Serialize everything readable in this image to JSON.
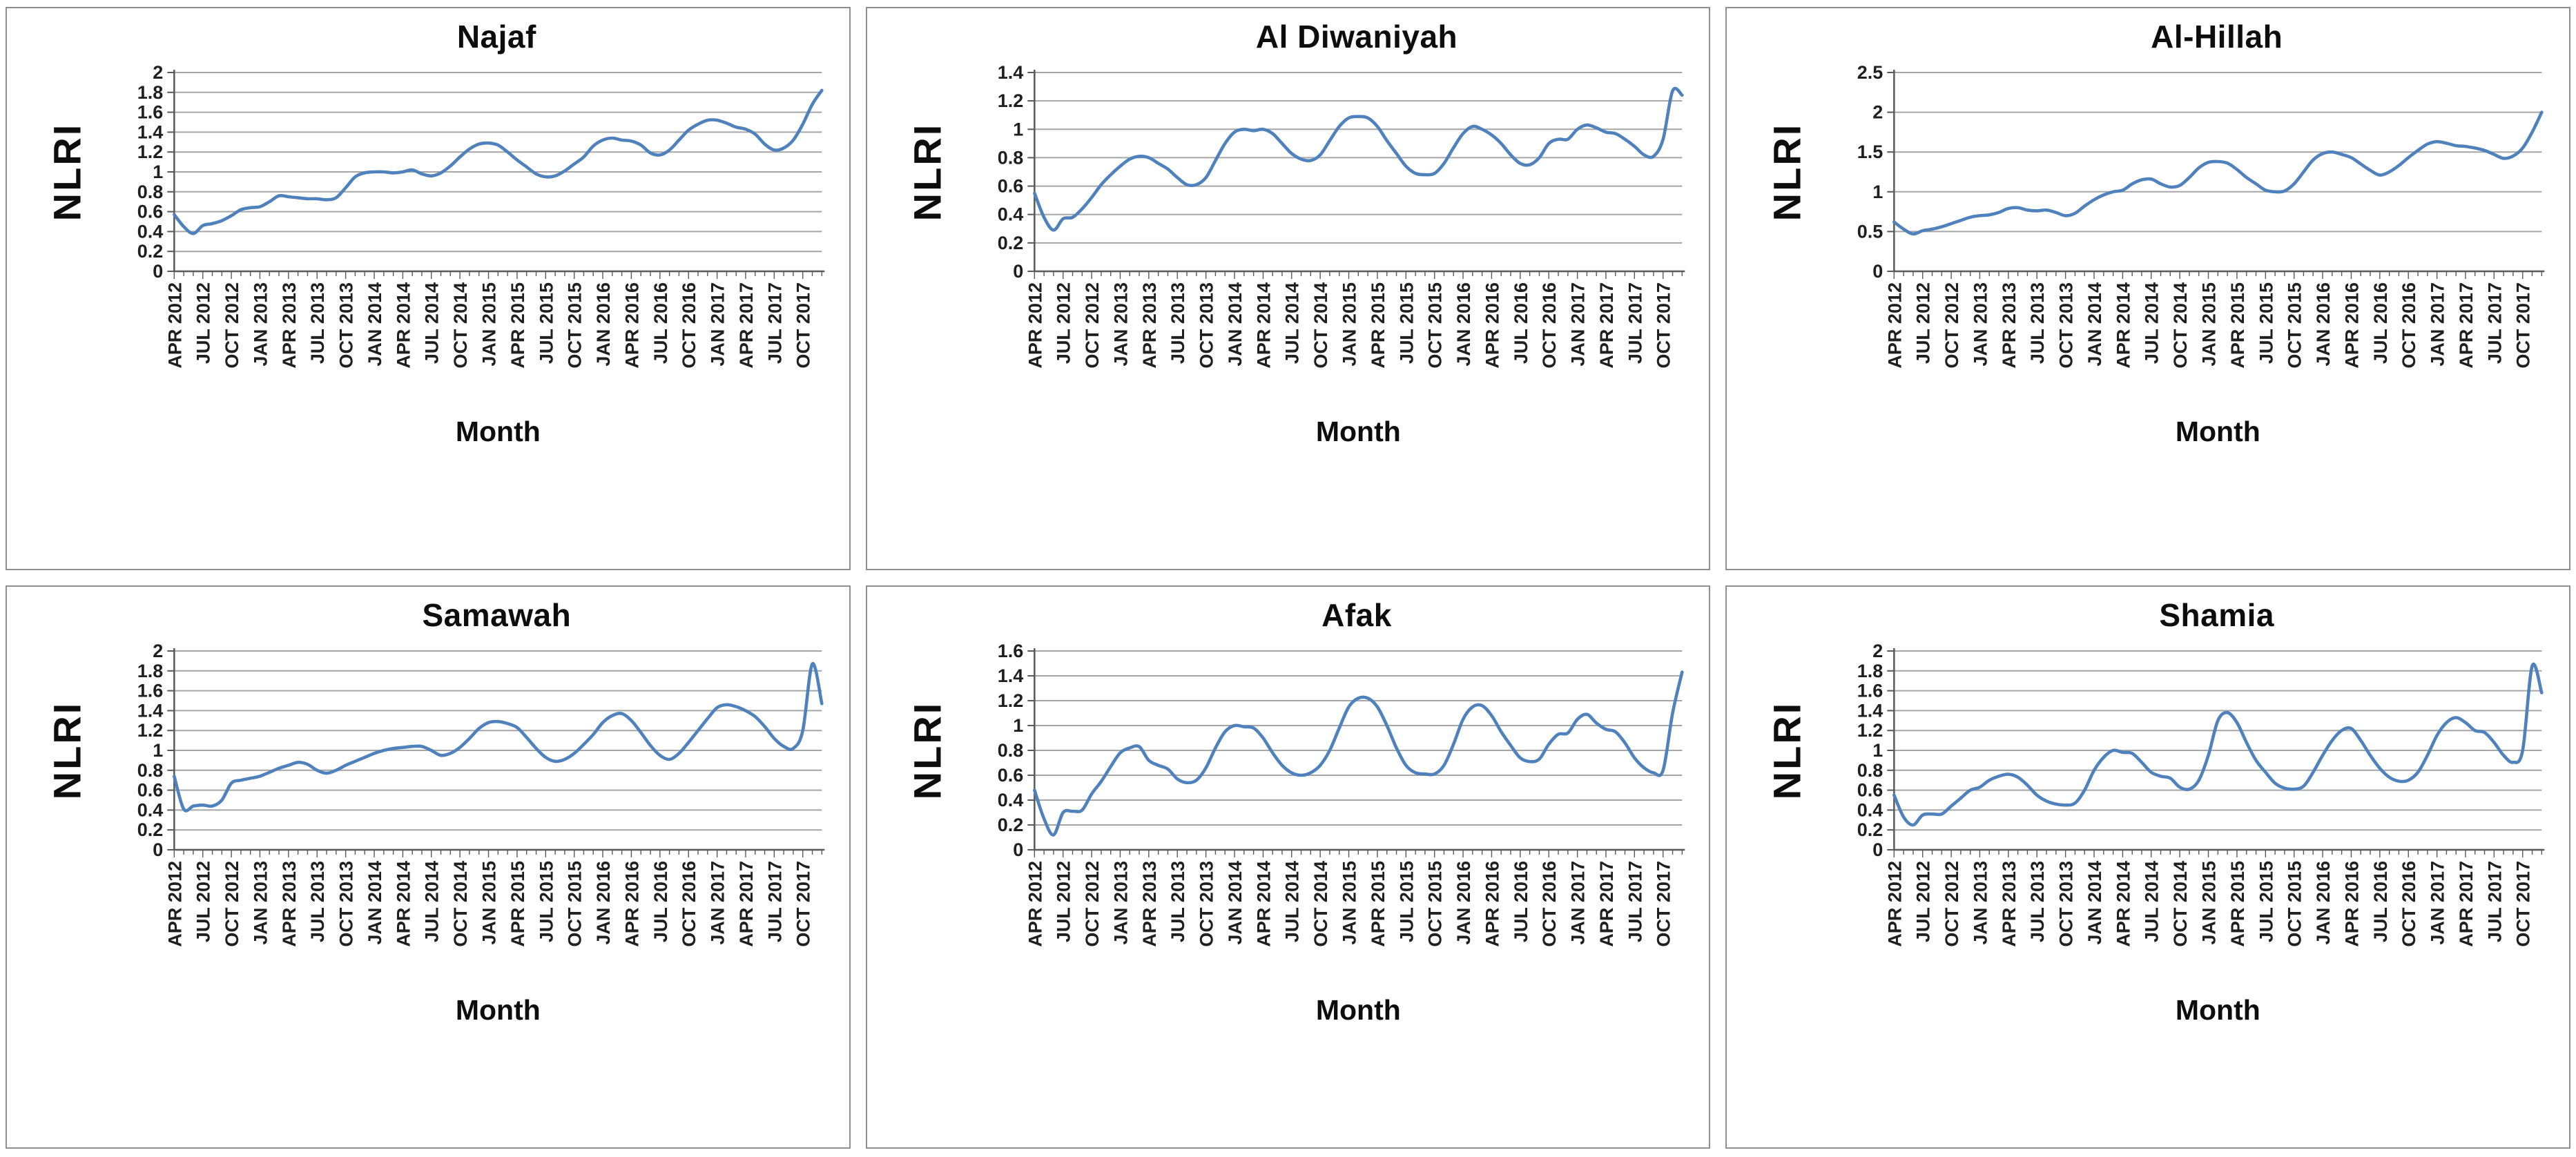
{
  "style": {
    "line_color": "#4f81bd",
    "gridline_color": "#a6a6a6",
    "axis_color": "#595959",
    "tick_text_color": "#1f1f1f",
    "title_text_color": "#0d0d0d",
    "panel_border_color": "#8f8f8f",
    "background": "#ffffff"
  },
  "chart_data": [
    {
      "id": "najaf",
      "type": "line",
      "title": "Najaf",
      "xlabel": "Month",
      "ylabel": "NLRI",
      "x_start": "APR 2012",
      "x_end": "DEC 2017",
      "x_interval": "monthly",
      "ylim": [
        0,
        2
      ],
      "ytick_step": 0.2,
      "grid": true,
      "legend": "none",
      "ytick_labels": [
        "2",
        "1.8",
        "1.6",
        "1.4",
        "1.2",
        "1",
        "0.8",
        "0.6",
        "0.4",
        "0.2",
        "0"
      ],
      "x_tick_labels": [
        "APR 2012",
        "JUL 2012",
        "OCT 2012",
        "JAN 2013",
        "APR 2013",
        "JUL 2013",
        "OCT 2013",
        "JAN 2014",
        "APR 2014",
        "JUL 2014",
        "OCT 2014",
        "JAN 2015",
        "APR 2015",
        "JUL 2015",
        "OCT 2015",
        "JAN 2016",
        "APR 2016",
        "JUL 2016",
        "OCT 2016",
        "JAN 2017",
        "APR 2017",
        "JUL 2017",
        "OCT 2017"
      ],
      "values": [
        0.57,
        0.45,
        0.38,
        0.46,
        0.48,
        0.51,
        0.56,
        0.62,
        0.64,
        0.65,
        0.7,
        0.76,
        0.75,
        0.74,
        0.73,
        0.73,
        0.72,
        0.74,
        0.84,
        0.95,
        0.99,
        1.0,
        1.0,
        0.99,
        1.0,
        1.02,
        0.98,
        0.96,
        0.99,
        1.06,
        1.15,
        1.23,
        1.28,
        1.29,
        1.27,
        1.2,
        1.12,
        1.05,
        0.98,
        0.95,
        0.96,
        1.01,
        1.08,
        1.15,
        1.26,
        1.32,
        1.34,
        1.32,
        1.31,
        1.27,
        1.19,
        1.17,
        1.22,
        1.32,
        1.42,
        1.48,
        1.52,
        1.52,
        1.49,
        1.45,
        1.43,
        1.38,
        1.28,
        1.22,
        1.24,
        1.32,
        1.48,
        1.68,
        1.82
      ]
    },
    {
      "id": "al-diwaniyah",
      "type": "line",
      "title": "Al Diwaniyah",
      "xlabel": "Month",
      "ylabel": "NLRI",
      "x_start": "APR 2012",
      "x_end": "DEC 2017",
      "x_interval": "monthly",
      "ylim": [
        0,
        1.4
      ],
      "ytick_step": 0.2,
      "grid": true,
      "legend": "none",
      "ytick_labels": [
        "1.4",
        "1.2",
        "1",
        "0.8",
        "0.6",
        "0.4",
        "0.2",
        "0"
      ],
      "x_tick_labels": [
        "APR 2012",
        "JUL 2012",
        "OCT 2012",
        "JAN 2013",
        "APR 2013",
        "JUL 2013",
        "OCT 2013",
        "JAN 2014",
        "APR 2014",
        "JUL 2014",
        "OCT 2014",
        "JAN 2015",
        "APR 2015",
        "JUL 2015",
        "OCT 2015",
        "JAN 2016",
        "APR 2016",
        "JUL 2016",
        "OCT 2016",
        "JAN 2017",
        "APR 2017",
        "JUL 2017",
        "OCT 2017"
      ],
      "values": [
        0.55,
        0.38,
        0.29,
        0.37,
        0.38,
        0.44,
        0.52,
        0.61,
        0.68,
        0.74,
        0.79,
        0.81,
        0.8,
        0.76,
        0.72,
        0.66,
        0.61,
        0.61,
        0.66,
        0.78,
        0.9,
        0.98,
        1.0,
        0.99,
        1.0,
        0.97,
        0.9,
        0.83,
        0.79,
        0.78,
        0.82,
        0.92,
        1.02,
        1.08,
        1.09,
        1.08,
        1.02,
        0.92,
        0.83,
        0.74,
        0.69,
        0.68,
        0.69,
        0.76,
        0.87,
        0.97,
        1.02,
        1.0,
        0.96,
        0.9,
        0.82,
        0.76,
        0.75,
        0.8,
        0.9,
        0.93,
        0.93,
        1.0,
        1.03,
        1.01,
        0.98,
        0.97,
        0.93,
        0.88,
        0.82,
        0.81,
        0.93,
        1.27,
        1.24
      ]
    },
    {
      "id": "al-hillah",
      "type": "line",
      "title": "Al-Hillah",
      "xlabel": "Month",
      "ylabel": "NLRI",
      "x_start": "APR 2012",
      "x_end": "DEC 2017",
      "x_interval": "monthly",
      "ylim": [
        0,
        2.5
      ],
      "ytick_step": 0.5,
      "grid": true,
      "legend": "none",
      "ytick_labels": [
        "2.5",
        "2",
        "1.5",
        "1",
        "0.5",
        "0"
      ],
      "x_tick_labels": [
        "APR 2012",
        "JUL 2012",
        "OCT 2012",
        "JAN 2013",
        "APR 2013",
        "JUL 2013",
        "OCT 2013",
        "JAN 2014",
        "APR 2014",
        "JUL 2014",
        "OCT 2014",
        "JAN 2015",
        "APR 2015",
        "JUL 2015",
        "OCT 2015",
        "JAN 2016",
        "APR 2016",
        "JUL 2016",
        "OCT 2016",
        "JAN 2017",
        "APR 2017",
        "JUL 2017",
        "OCT 2017"
      ],
      "values": [
        0.62,
        0.53,
        0.47,
        0.51,
        0.53,
        0.56,
        0.6,
        0.64,
        0.68,
        0.7,
        0.71,
        0.74,
        0.79,
        0.8,
        0.77,
        0.76,
        0.77,
        0.74,
        0.7,
        0.73,
        0.82,
        0.9,
        0.96,
        1.0,
        1.02,
        1.1,
        1.15,
        1.16,
        1.1,
        1.06,
        1.08,
        1.18,
        1.3,
        1.37,
        1.38,
        1.36,
        1.28,
        1.18,
        1.1,
        1.02,
        1.0,
        1.01,
        1.1,
        1.25,
        1.4,
        1.48,
        1.5,
        1.47,
        1.43,
        1.35,
        1.27,
        1.21,
        1.25,
        1.33,
        1.43,
        1.52,
        1.6,
        1.63,
        1.61,
        1.58,
        1.57,
        1.55,
        1.52,
        1.47,
        1.42,
        1.45,
        1.55,
        1.75,
        2.0
      ]
    },
    {
      "id": "samawah",
      "type": "line",
      "title": "Samawah",
      "xlabel": "Month",
      "ylabel": "NLRI",
      "x_start": "APR 2012",
      "x_end": "DEC 2017",
      "x_interval": "monthly",
      "ylim": [
        0,
        2
      ],
      "ytick_step": 0.2,
      "grid": true,
      "legend": "none",
      "ytick_labels": [
        "2",
        "1.8",
        "1.6",
        "1.4",
        "1.2",
        "1",
        "0.8",
        "0.6",
        "0.4",
        "0.2",
        "0"
      ],
      "x_tick_labels": [
        "APR 2012",
        "JUL 2012",
        "OCT 2012",
        "JAN 2013",
        "APR 2013",
        "JUL 2013",
        "OCT 2013",
        "JAN 2014",
        "APR 2014",
        "JUL 2014",
        "OCT 2014",
        "JAN 2015",
        "APR 2015",
        "JUL 2015",
        "OCT 2015",
        "JAN 2016",
        "APR 2016",
        "JUL 2016",
        "OCT 2016",
        "JAN 2017",
        "APR 2017",
        "JUL 2017",
        "OCT 2017"
      ],
      "values": [
        0.74,
        0.41,
        0.44,
        0.45,
        0.44,
        0.5,
        0.67,
        0.7,
        0.72,
        0.74,
        0.78,
        0.82,
        0.85,
        0.88,
        0.86,
        0.8,
        0.77,
        0.8,
        0.85,
        0.89,
        0.93,
        0.97,
        1.0,
        1.02,
        1.03,
        1.04,
        1.04,
        1.0,
        0.95,
        0.97,
        1.03,
        1.12,
        1.22,
        1.28,
        1.29,
        1.27,
        1.23,
        1.13,
        1.02,
        0.93,
        0.89,
        0.91,
        0.97,
        1.06,
        1.16,
        1.28,
        1.35,
        1.37,
        1.3,
        1.18,
        1.05,
        0.95,
        0.91,
        0.97,
        1.08,
        1.2,
        1.32,
        1.43,
        1.46,
        1.44,
        1.4,
        1.34,
        1.24,
        1.12,
        1.04,
        1.02,
        1.2,
        1.87,
        1.47
      ]
    },
    {
      "id": "afak",
      "type": "line",
      "title": "Afak",
      "xlabel": "Month",
      "ylabel": "NLRI",
      "x_start": "APR 2012",
      "x_end": "DEC 2017",
      "x_interval": "monthly",
      "ylim": [
        0,
        1.6
      ],
      "ytick_step": 0.2,
      "grid": true,
      "legend": "none",
      "ytick_labels": [
        "1.6",
        "1.4",
        "1.2",
        "1",
        "0.8",
        "0.6",
        "0.4",
        "0.2",
        "0"
      ],
      "x_tick_labels": [
        "APR 2012",
        "JUL 2012",
        "OCT 2012",
        "JAN 2013",
        "APR 2013",
        "JUL 2013",
        "OCT 2013",
        "JAN 2014",
        "APR 2014",
        "JUL 2014",
        "OCT 2014",
        "JAN 2015",
        "APR 2015",
        "JUL 2015",
        "OCT 2015",
        "JAN 2016",
        "APR 2016",
        "JUL 2016",
        "OCT 2016",
        "JAN 2017",
        "APR 2017",
        "JUL 2017",
        "OCT 2017"
      ],
      "values": [
        0.48,
        0.25,
        0.12,
        0.3,
        0.31,
        0.32,
        0.45,
        0.55,
        0.67,
        0.78,
        0.82,
        0.83,
        0.72,
        0.68,
        0.65,
        0.57,
        0.54,
        0.56,
        0.66,
        0.82,
        0.95,
        1.0,
        0.99,
        0.98,
        0.9,
        0.78,
        0.68,
        0.62,
        0.6,
        0.62,
        0.68,
        0.8,
        0.98,
        1.15,
        1.22,
        1.22,
        1.15,
        1.0,
        0.82,
        0.68,
        0.62,
        0.61,
        0.61,
        0.68,
        0.85,
        1.05,
        1.15,
        1.16,
        1.08,
        0.95,
        0.84,
        0.74,
        0.71,
        0.73,
        0.85,
        0.93,
        0.94,
        1.05,
        1.09,
        1.02,
        0.97,
        0.95,
        0.86,
        0.74,
        0.66,
        0.62,
        0.64,
        1.1,
        1.43
      ]
    },
    {
      "id": "shamia",
      "type": "line",
      "title": "Shamia",
      "xlabel": "Month",
      "ylabel": "NLRI",
      "x_start": "APR 2012",
      "x_end": "DEC 2017",
      "x_interval": "monthly",
      "ylim": [
        0,
        2
      ],
      "ytick_step": 0.2,
      "grid": true,
      "legend": "none",
      "ytick_labels": [
        "2",
        "1.8",
        "1.6",
        "1.4",
        "1.2",
        "1",
        "0.8",
        "0.6",
        "0.4",
        "0.2",
        "0"
      ],
      "x_tick_labels": [
        "APR 2012",
        "JUL 2012",
        "OCT 2012",
        "JAN 2013",
        "APR 2013",
        "JUL 2013",
        "OCT 2013",
        "JAN 2014",
        "APR 2014",
        "JUL 2014",
        "OCT 2014",
        "JAN 2015",
        "APR 2015",
        "JUL 2015",
        "OCT 2015",
        "JAN 2016",
        "APR 2016",
        "JUL 2016",
        "OCT 2016",
        "JAN 2017",
        "APR 2017",
        "JUL 2017",
        "OCT 2017"
      ],
      "values": [
        0.55,
        0.33,
        0.25,
        0.35,
        0.36,
        0.36,
        0.44,
        0.52,
        0.6,
        0.63,
        0.7,
        0.74,
        0.76,
        0.73,
        0.65,
        0.55,
        0.49,
        0.46,
        0.45,
        0.47,
        0.6,
        0.8,
        0.93,
        1.0,
        0.98,
        0.97,
        0.88,
        0.78,
        0.74,
        0.72,
        0.63,
        0.61,
        0.7,
        0.95,
        1.3,
        1.38,
        1.28,
        1.08,
        0.9,
        0.78,
        0.67,
        0.62,
        0.61,
        0.64,
        0.78,
        0.95,
        1.1,
        1.2,
        1.22,
        1.1,
        0.95,
        0.82,
        0.73,
        0.69,
        0.7,
        0.78,
        0.95,
        1.15,
        1.28,
        1.33,
        1.28,
        1.2,
        1.18,
        1.08,
        0.95,
        0.88,
        1.0,
        1.85,
        1.58
      ]
    }
  ]
}
